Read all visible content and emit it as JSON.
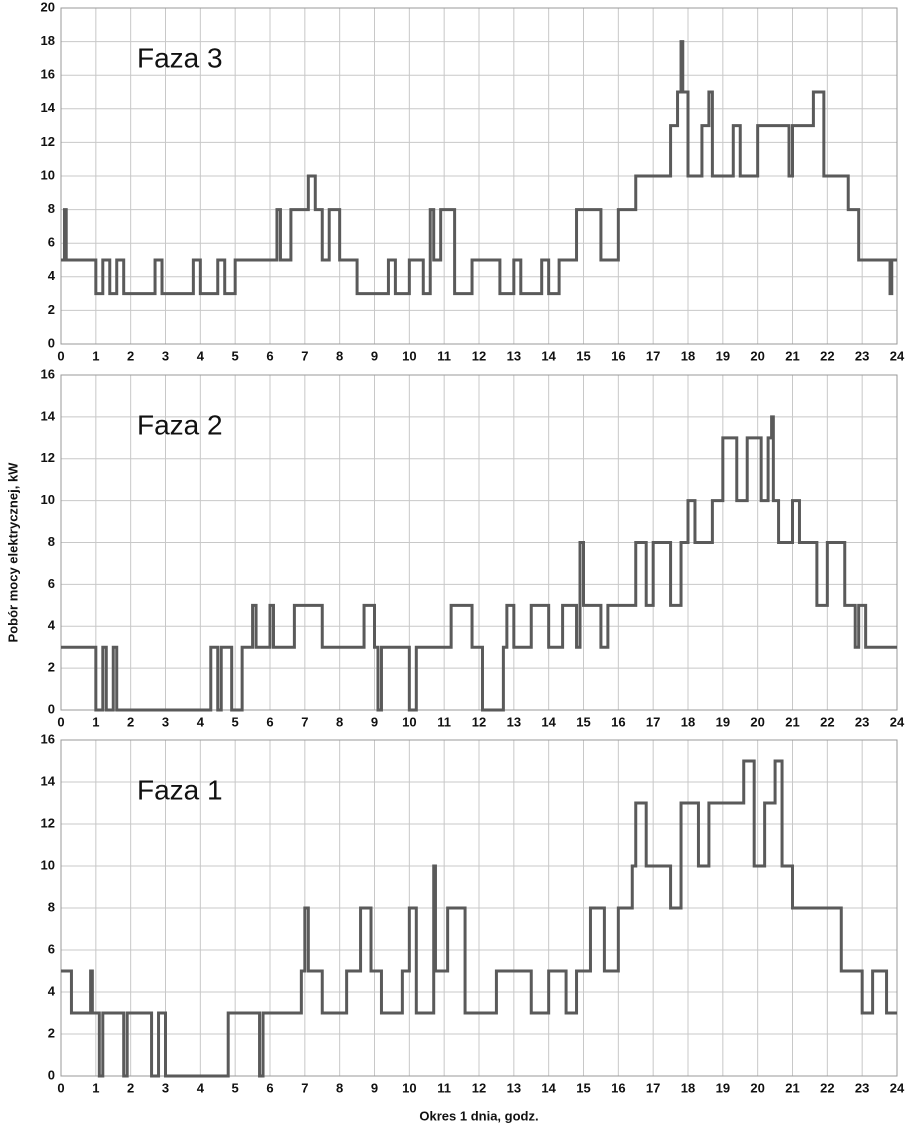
{
  "chart_data": [
    {
      "type": "line",
      "step": "post",
      "title": "Faza 3",
      "color": "#5a5a5a",
      "grid": true,
      "xlim": [
        0,
        24
      ],
      "xticks": [
        0,
        1,
        2,
        3,
        4,
        5,
        6,
        7,
        8,
        9,
        10,
        11,
        12,
        13,
        14,
        15,
        16,
        17,
        18,
        19,
        20,
        21,
        22,
        23,
        24
      ],
      "ylim": [
        0,
        20
      ],
      "yticks": [
        0,
        2,
        4,
        6,
        8,
        10,
        12,
        14,
        16,
        18,
        20
      ],
      "x": [
        0,
        0.1,
        0.15,
        1.0,
        1.2,
        1.4,
        1.6,
        1.8,
        2.7,
        2.9,
        3.8,
        4.0,
        4.5,
        4.7,
        5.0,
        6.2,
        6.3,
        6.6,
        7.1,
        7.3,
        7.5,
        7.7,
        8.0,
        8.5,
        9.4,
        9.6,
        10.0,
        10.4,
        10.6,
        10.7,
        10.9,
        11.3,
        11.8,
        12.6,
        13.0,
        13.2,
        13.8,
        14.0,
        14.3,
        14.8,
        15.5,
        16.0,
        16.5,
        17.5,
        17.7,
        17.8,
        17.85,
        18.0,
        18.4,
        18.6,
        18.7,
        19.3,
        19.5,
        20.0,
        20.9,
        21.0,
        21.6,
        21.9,
        22.6,
        22.9,
        23.8,
        23.85
      ],
      "values": [
        5,
        8,
        5,
        3,
        5,
        3,
        5,
        3,
        5,
        3,
        5,
        3,
        5,
        3,
        5,
        8,
        5,
        8,
        10,
        8,
        5,
        8,
        5,
        3,
        5,
        3,
        5,
        3,
        8,
        5,
        8,
        3,
        5,
        3,
        5,
        3,
        5,
        3,
        5,
        8,
        5,
        8,
        10,
        13,
        15,
        18,
        15,
        10,
        13,
        15,
        10,
        13,
        10,
        13,
        10,
        13,
        15,
        10,
        8,
        5,
        3,
        5
      ]
    },
    {
      "type": "line",
      "step": "post",
      "title": "Faza 2",
      "ylabel": "Pobór mocy elektrycznej, kW",
      "color": "#5a5a5a",
      "grid": true,
      "xlim": [
        0,
        24
      ],
      "xticks": [
        0,
        1,
        2,
        3,
        4,
        5,
        6,
        7,
        8,
        9,
        10,
        11,
        12,
        13,
        14,
        15,
        16,
        17,
        18,
        19,
        20,
        21,
        22,
        23,
        24
      ],
      "ylim": [
        0,
        16
      ],
      "yticks": [
        0,
        2,
        4,
        6,
        8,
        10,
        12,
        14,
        16
      ],
      "x": [
        0,
        1.0,
        1.2,
        1.3,
        1.5,
        1.6,
        4.3,
        4.5,
        4.6,
        4.9,
        5.2,
        5.5,
        5.6,
        6.0,
        6.1,
        6.7,
        7.5,
        8.7,
        9.0,
        9.1,
        9.2,
        10.0,
        10.2,
        11.2,
        11.8,
        12.1,
        12.7,
        12.8,
        13.0,
        13.5,
        14.0,
        14.4,
        14.8,
        14.9,
        15.0,
        15.5,
        15.7,
        16.5,
        16.8,
        17.0,
        17.5,
        17.8,
        18.0,
        18.2,
        18.7,
        19.0,
        19.4,
        19.7,
        20.1,
        20.3,
        20.4,
        20.45,
        20.6,
        21.0,
        21.2,
        21.7,
        22.0,
        22.5,
        22.8,
        22.9,
        23.1
      ],
      "values": [
        3,
        0,
        3,
        0,
        3,
        0,
        3,
        0,
        3,
        0,
        3,
        5,
        3,
        5,
        3,
        5,
        3,
        5,
        3,
        0,
        3,
        0,
        3,
        5,
        3,
        0,
        3,
        5,
        3,
        5,
        3,
        5,
        3,
        8,
        5,
        3,
        5,
        8,
        5,
        8,
        5,
        8,
        10,
        8,
        10,
        13,
        10,
        13,
        10,
        13,
        14,
        10,
        8,
        10,
        8,
        5,
        8,
        5,
        3,
        5,
        3
      ]
    },
    {
      "type": "line",
      "step": "post",
      "title": "Faza 1",
      "xlabel": "Okres 1 dnia, godz.",
      "color": "#5a5a5a",
      "grid": true,
      "xlim": [
        0,
        24
      ],
      "xticks": [
        0,
        1,
        2,
        3,
        4,
        5,
        6,
        7,
        8,
        9,
        10,
        11,
        12,
        13,
        14,
        15,
        16,
        17,
        18,
        19,
        20,
        21,
        22,
        23,
        24
      ],
      "ylim": [
        0,
        16
      ],
      "yticks": [
        0,
        2,
        4,
        6,
        8,
        10,
        12,
        14,
        16
      ],
      "x": [
        0,
        0.3,
        0.85,
        0.9,
        1.1,
        1.2,
        1.8,
        1.9,
        2.6,
        2.8,
        3.0,
        4.8,
        5.7,
        5.8,
        6.9,
        7.0,
        7.1,
        7.5,
        8.2,
        8.6,
        8.9,
        9.2,
        9.8,
        10.0,
        10.2,
        10.7,
        10.75,
        11.1,
        11.6,
        12.5,
        13.5,
        14.0,
        14.5,
        14.8,
        15.2,
        15.6,
        16.0,
        16.4,
        16.5,
        16.8,
        17.5,
        17.8,
        18.3,
        18.6,
        19.6,
        19.9,
        20.2,
        20.5,
        20.7,
        21.0,
        22.4,
        23.0,
        23.3,
        23.7
      ],
      "values": [
        5,
        3,
        5,
        3,
        0,
        3,
        0,
        3,
        0,
        3,
        0,
        3,
        0,
        3,
        5,
        8,
        5,
        3,
        5,
        8,
        5,
        3,
        5,
        8,
        3,
        10,
        5,
        8,
        3,
        5,
        3,
        5,
        3,
        5,
        8,
        5,
        8,
        10,
        13,
        10,
        8,
        13,
        10,
        13,
        15,
        10,
        13,
        15,
        10,
        8,
        5,
        3,
        5,
        3
      ]
    }
  ]
}
